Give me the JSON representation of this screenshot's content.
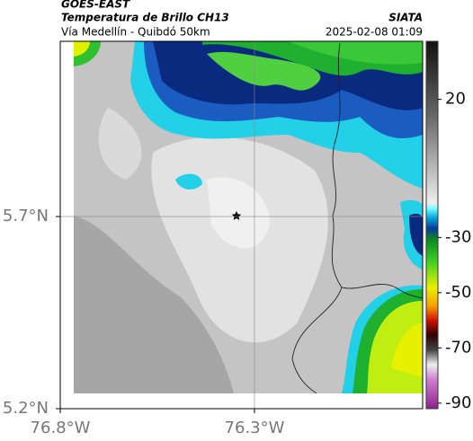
{
  "header": {
    "source": "GOES-EAST",
    "title": "Temperatura de Brillo CH13",
    "subtitle": "Vía Medellín - Quibdó 50km",
    "org": "SIATA",
    "datetime": "2025-02-08 01:09"
  },
  "map": {
    "xlim": [
      -76.8,
      -75.867
    ],
    "ylim": [
      5.2,
      6.156
    ],
    "xticks": [
      {
        "value": -76.8,
        "label": "76.8°W"
      },
      {
        "value": -76.3,
        "label": "76.3°W"
      }
    ],
    "yticks": [
      {
        "value": 5.7,
        "label": "5.7°N"
      },
      {
        "value": 5.2,
        "label": "5.2°N"
      }
    ]
  },
  "colorbar": {
    "lim": [
      -92,
      41
    ],
    "ticks": [
      20,
      -30,
      -50,
      -70,
      -90
    ]
  }
}
